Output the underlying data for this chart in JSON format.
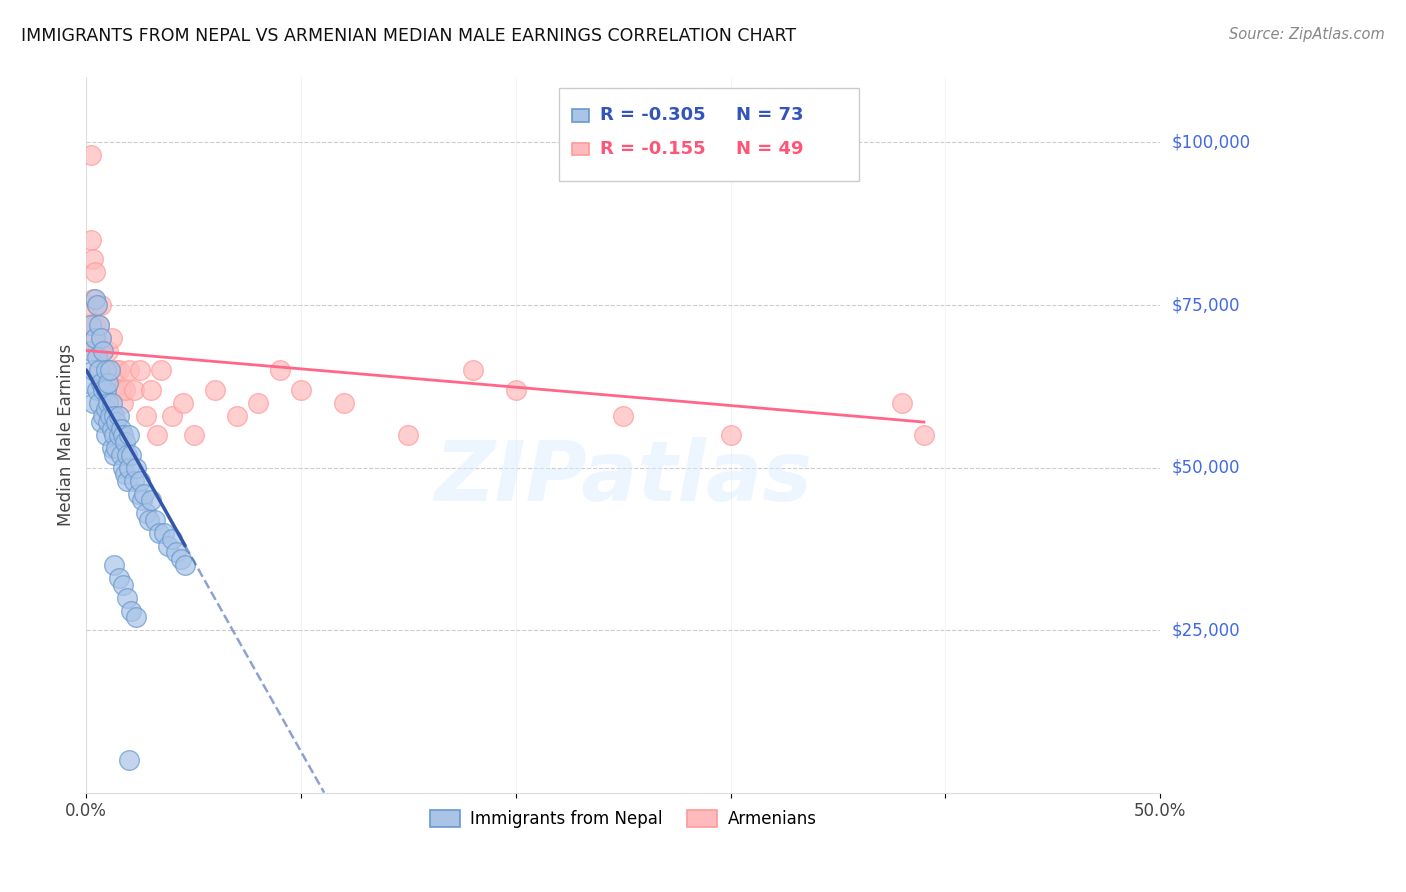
{
  "title": "IMMIGRANTS FROM NEPAL VS ARMENIAN MEDIAN MALE EARNINGS CORRELATION CHART",
  "source": "Source: ZipAtlas.com",
  "ylabel": "Median Male Earnings",
  "ytick_labels": [
    "$25,000",
    "$50,000",
    "$75,000",
    "$100,000"
  ],
  "ytick_values": [
    25000,
    50000,
    75000,
    100000
  ],
  "ytick_color": "#4169E1",
  "watermark": "ZIPatlas",
  "legend_r1": "R = -0.305",
  "legend_n1": "N = 73",
  "legend_r2": "R = -0.155",
  "legend_n2": "N = 49",
  "nepal_color": "#6699CC",
  "nepal_fill": "#AAC4E8",
  "armenian_color": "#FF9999",
  "armenian_fill": "#FFBBBB",
  "line_nepal_solid_color": "#3355AA",
  "line_armenian_color": "#FF6688",
  "nepal_x": [
    0.001,
    0.002,
    0.002,
    0.003,
    0.003,
    0.004,
    0.004,
    0.005,
    0.005,
    0.005,
    0.006,
    0.006,
    0.006,
    0.007,
    0.007,
    0.007,
    0.008,
    0.008,
    0.008,
    0.009,
    0.009,
    0.009,
    0.009,
    0.01,
    0.01,
    0.01,
    0.011,
    0.011,
    0.012,
    0.012,
    0.012,
    0.013,
    0.013,
    0.013,
    0.014,
    0.014,
    0.015,
    0.015,
    0.016,
    0.016,
    0.017,
    0.017,
    0.018,
    0.018,
    0.019,
    0.019,
    0.02,
    0.02,
    0.021,
    0.022,
    0.023,
    0.024,
    0.025,
    0.026,
    0.027,
    0.028,
    0.029,
    0.03,
    0.032,
    0.034,
    0.036,
    0.038,
    0.04,
    0.042,
    0.044,
    0.046,
    0.013,
    0.015,
    0.017,
    0.019,
    0.021,
    0.023,
    0.02
  ],
  "nepal_y": [
    63000,
    68000,
    72000,
    65000,
    60000,
    76000,
    70000,
    75000,
    67000,
    62000,
    72000,
    65000,
    60000,
    70000,
    63000,
    57000,
    68000,
    62000,
    58000,
    65000,
    62000,
    59000,
    55000,
    63000,
    60000,
    57000,
    65000,
    58000,
    60000,
    56000,
    53000,
    58000,
    55000,
    52000,
    57000,
    53000,
    58000,
    55000,
    56000,
    52000,
    55000,
    50000,
    54000,
    49000,
    52000,
    48000,
    55000,
    50000,
    52000,
    48000,
    50000,
    46000,
    48000,
    45000,
    46000,
    43000,
    42000,
    45000,
    42000,
    40000,
    40000,
    38000,
    39000,
    37000,
    36000,
    35000,
    35000,
    33000,
    32000,
    30000,
    28000,
    27000,
    5000
  ],
  "armenian_x": [
    0.001,
    0.001,
    0.002,
    0.002,
    0.003,
    0.003,
    0.003,
    0.004,
    0.004,
    0.005,
    0.005,
    0.006,
    0.006,
    0.007,
    0.007,
    0.008,
    0.009,
    0.01,
    0.011,
    0.012,
    0.013,
    0.014,
    0.015,
    0.016,
    0.017,
    0.018,
    0.02,
    0.022,
    0.025,
    0.028,
    0.03,
    0.033,
    0.035,
    0.04,
    0.045,
    0.05,
    0.06,
    0.07,
    0.08,
    0.09,
    0.1,
    0.12,
    0.15,
    0.18,
    0.2,
    0.25,
    0.3,
    0.38,
    0.39
  ],
  "armenian_y": [
    75000,
    72000,
    98000,
    85000,
    82000,
    76000,
    70000,
    80000,
    72000,
    75000,
    68000,
    72000,
    65000,
    75000,
    70000,
    68000,
    65000,
    68000,
    65000,
    70000,
    62000,
    65000,
    65000,
    62000,
    60000,
    62000,
    65000,
    62000,
    65000,
    58000,
    62000,
    55000,
    65000,
    58000,
    60000,
    55000,
    62000,
    58000,
    60000,
    65000,
    62000,
    60000,
    55000,
    65000,
    62000,
    58000,
    55000,
    60000,
    55000
  ],
  "xlim": [
    0.0,
    0.5
  ],
  "ylim": [
    0,
    110000
  ],
  "background_color": "#FFFFFF",
  "grid_color": "#CCCCCC",
  "nepal_line_x_solid_end": 0.046,
  "nepal_line_x0": 0.0,
  "nepal_line_y0": 65000,
  "nepal_line_x1": 0.046,
  "nepal_line_y1": 38000,
  "nepal_line_dashed_x1": 0.38,
  "armenian_line_x0": 0.0,
  "armenian_line_y0": 68000,
  "armenian_line_x1": 0.39,
  "armenian_line_y1": 57000
}
